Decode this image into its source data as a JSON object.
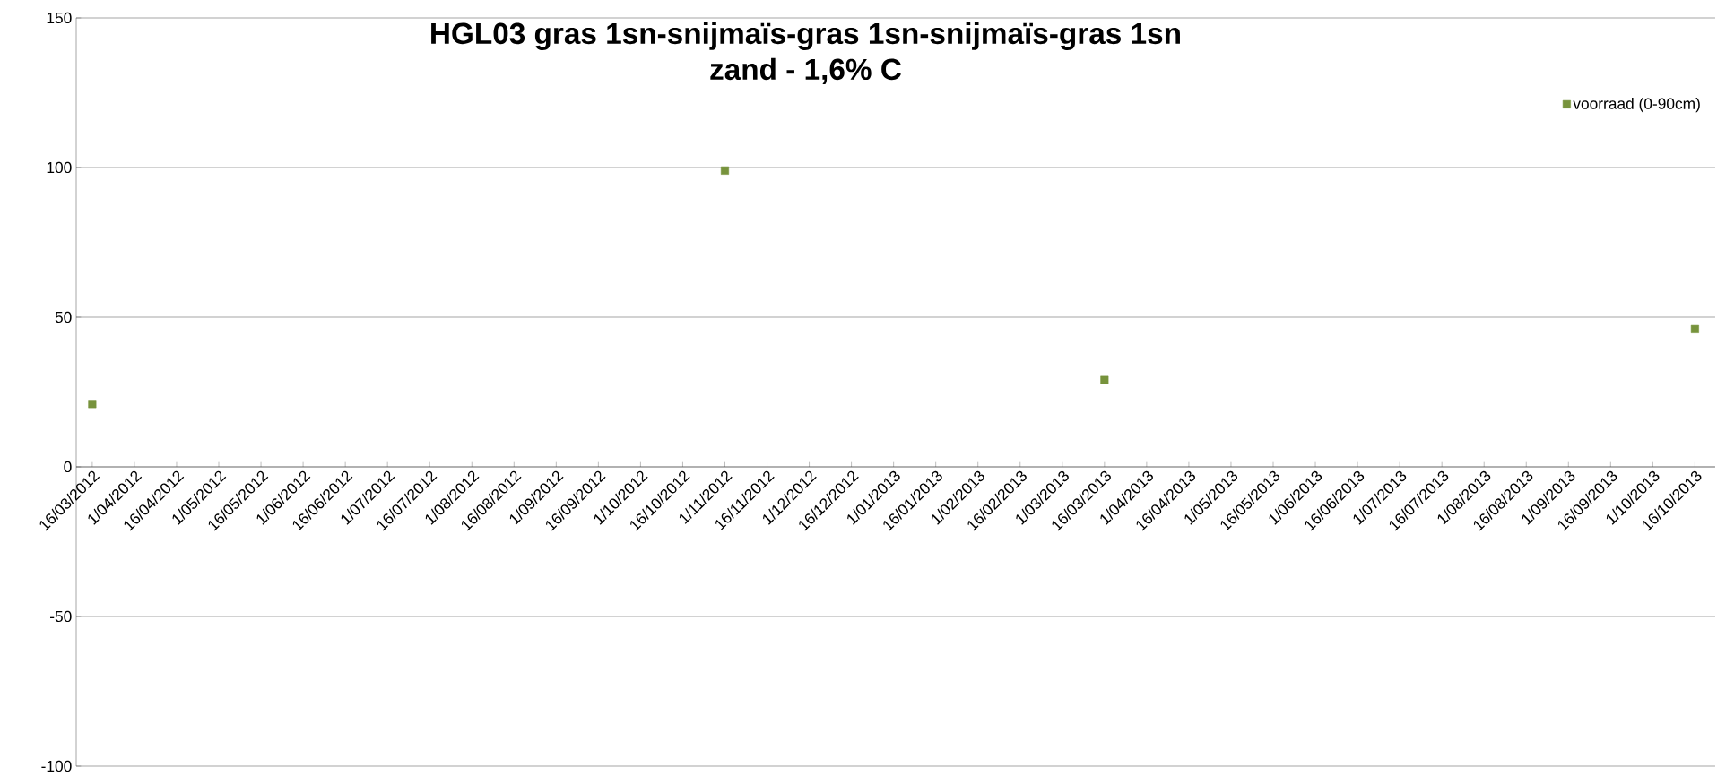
{
  "chart_data": {
    "type": "scatter",
    "title": "HGL03 gras 1sn-snijmaïs-gras 1sn-snijmaïs-gras 1sn",
    "subtitle": "zand - 1,6% C",
    "categories": [
      "16/03/2012",
      "1/04/2012",
      "16/04/2012",
      "1/05/2012",
      "16/05/2012",
      "1/06/2012",
      "16/06/2012",
      "1/07/2012",
      "16/07/2012",
      "1/08/2012",
      "16/08/2012",
      "1/09/2012",
      "16/09/2012",
      "1/10/2012",
      "16/10/2012",
      "1/11/2012",
      "16/11/2012",
      "1/12/2012",
      "16/12/2012",
      "1/01/2013",
      "16/01/2013",
      "1/02/2013",
      "16/02/2013",
      "1/03/2013",
      "16/03/2013",
      "1/04/2013",
      "16/04/2013",
      "1/05/2013",
      "16/05/2013",
      "1/06/2013",
      "16/06/2013",
      "1/07/2013",
      "16/07/2013",
      "1/08/2013",
      "16/08/2013",
      "1/09/2013",
      "16/09/2013",
      "1/10/2013",
      "16/10/2013"
    ],
    "series": [
      {
        "name": "voorraad (0-90cm)",
        "color": "#77933c",
        "values": [
          21,
          null,
          null,
          null,
          null,
          null,
          null,
          null,
          null,
          null,
          null,
          null,
          null,
          null,
          null,
          99,
          null,
          null,
          null,
          null,
          null,
          null,
          null,
          null,
          29,
          null,
          null,
          null,
          null,
          null,
          null,
          null,
          null,
          null,
          null,
          null,
          null,
          null,
          46
        ]
      }
    ],
    "ylim": [
      -100,
      150
    ],
    "yticks": [
      -100,
      -50,
      0,
      50,
      100,
      150
    ],
    "grid": "y",
    "legend": "top right",
    "marker": "square"
  }
}
